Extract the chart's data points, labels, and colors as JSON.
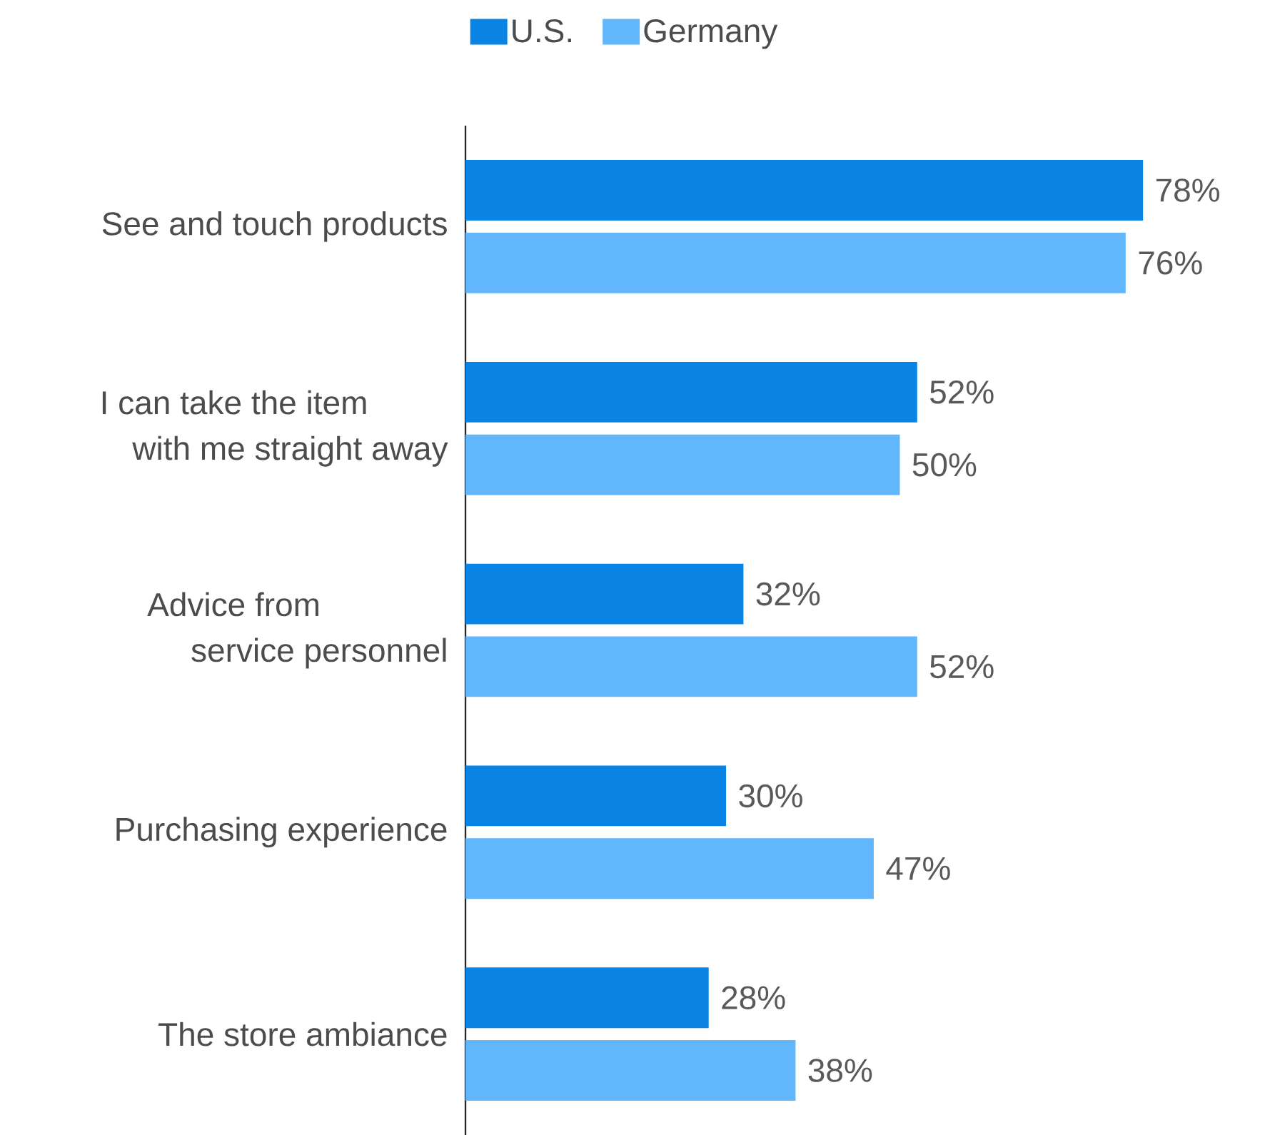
{
  "chart_data": {
    "type": "bar",
    "orientation": "horizontal",
    "legend": "top",
    "categories": [
      "See and touch products",
      "I can take the item with me straight away",
      "Advice from service personnel",
      "Purchasing experience",
      "The store ambiance"
    ],
    "series": [
      {
        "name": "U.S.",
        "color": "#0a84e4",
        "values": [
          78,
          52,
          32,
          30,
          28
        ],
        "value_labels": [
          "78%",
          "52%",
          "32%",
          "30%",
          "28%"
        ]
      },
      {
        "name": "Germany",
        "color": "#62b6fb",
        "values": [
          76,
          50,
          52,
          47,
          38
        ],
        "value_labels": [
          "76%",
          "50%",
          "52%",
          "47%",
          "38%"
        ]
      }
    ]
  }
}
